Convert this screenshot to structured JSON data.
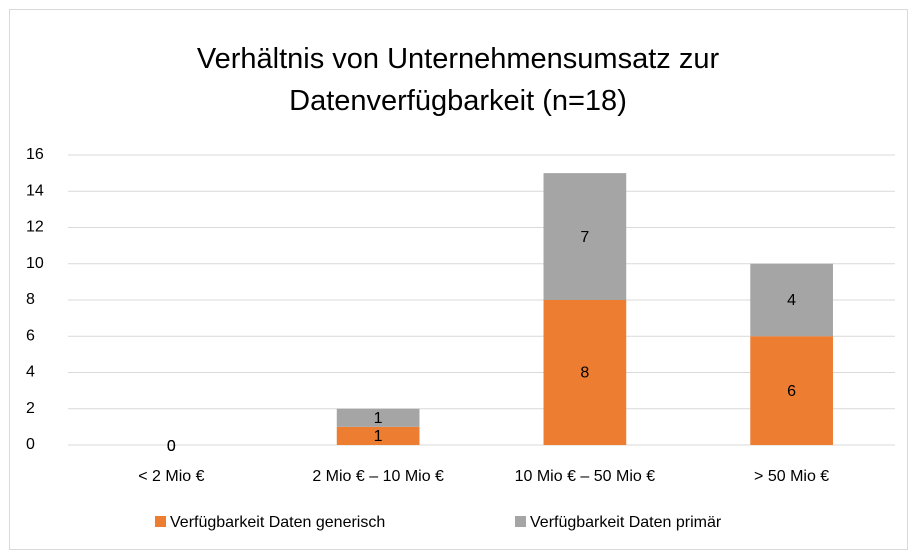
{
  "chart_data": {
    "type": "bar",
    "stacked": true,
    "title": "Verhältnis von Unternehmensumsatz zur Datenverfügbarkeit (n=18)",
    "categories": [
      "< 2 Mio €",
      "2 Mio € – 10 Mio €",
      "10 Mio € – 50 Mio €",
      "> 50 Mio €"
    ],
    "series": [
      {
        "name": "Verfügbarkeit Daten generisch",
        "color": "#ed7d31",
        "values": [
          0,
          1,
          8,
          6
        ]
      },
      {
        "name": "Verfügbarkeit Daten primär",
        "color": "#a5a5a5",
        "values": [
          0,
          1,
          7,
          4
        ]
      }
    ],
    "ylim": [
      0,
      16
    ],
    "yticks": [
      0,
      2,
      4,
      6,
      8,
      10,
      12,
      14,
      16
    ],
    "grid": true,
    "legend": "bottom"
  }
}
